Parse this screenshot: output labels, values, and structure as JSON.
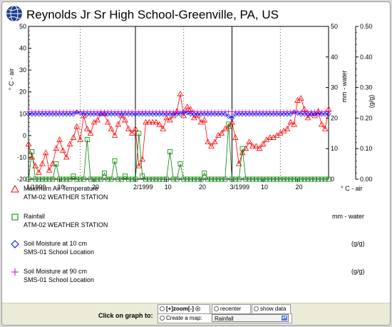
{
  "title": "Reynolds Jr Sr High School-Greenville, PA, US",
  "chart_data": {
    "type": "line",
    "x_unit": "day of record (1 = Jan 1, 1999)",
    "x_range": [
      1,
      88
    ],
    "month_starts": [
      1,
      32,
      60
    ],
    "x_tick_labels": [
      "1/1999",
      "10",
      "20",
      "2/1999",
      "10",
      "20",
      "3/1999",
      "10",
      "20"
    ],
    "x_tick_days": [
      1,
      10,
      20,
      32,
      41,
      51,
      60,
      69,
      79
    ],
    "y_left": {
      "label": "° C - air",
      "ylim": [
        -20,
        50
      ],
      "ticks": [
        -20,
        -10,
        0,
        10,
        20,
        30,
        40,
        50
      ]
    },
    "y_right1": {
      "label": "mm - water",
      "ylim": [
        0,
        50
      ],
      "ticks": [
        0,
        10,
        20,
        30,
        40,
        50
      ]
    },
    "y_right2": {
      "label": "(g/g)",
      "ylim": [
        0,
        0.5
      ],
      "ticks": [
        "0.00",
        "0.10",
        "0.20",
        "0.30",
        "0.40",
        "0.50"
      ]
    },
    "series": [
      {
        "name": "Maximum Air Temperature",
        "source": "ATM-02 WEATHER STATION",
        "unit": "° C - air",
        "axis": "left",
        "color": "#ff0000",
        "marker": "triangle",
        "x": [
          1,
          2,
          3,
          4,
          5,
          6,
          7,
          8,
          9,
          10,
          11,
          12,
          13,
          14,
          15,
          16,
          17,
          18,
          19,
          20,
          21,
          22,
          23,
          24,
          25,
          26,
          27,
          28,
          29,
          30,
          31,
          32,
          33,
          34,
          35,
          36,
          37,
          38,
          39,
          40,
          41,
          42,
          43,
          44,
          45,
          46,
          47,
          48,
          49,
          50,
          51,
          52,
          53,
          54,
          55,
          56,
          57,
          58,
          59,
          60,
          61,
          62,
          63,
          64,
          65,
          66,
          67,
          68,
          69,
          70,
          71,
          72,
          73,
          74,
          75,
          76,
          77,
          78,
          79,
          80,
          81,
          82,
          83,
          84,
          85,
          86,
          87,
          88
        ],
        "y": [
          -4,
          -10,
          -14,
          -17,
          -13,
          -8,
          -16,
          -13,
          -6,
          -2,
          -7,
          -10,
          -4,
          -1,
          4,
          -2,
          9,
          3,
          1,
          6,
          7,
          10,
          10,
          6,
          3,
          0,
          5,
          9,
          7,
          3,
          1,
          3,
          -14,
          -11,
          6,
          6,
          6,
          6,
          5,
          3,
          8,
          7,
          9,
          11,
          19,
          9,
          13,
          12,
          8,
          9,
          6,
          7,
          -3,
          -5,
          -3,
          0,
          1,
          3,
          4,
          6,
          -1,
          -13,
          -8,
          -6,
          -3,
          -5,
          -5,
          -6,
          -4,
          -2,
          -1,
          -1,
          0,
          1,
          2,
          3,
          6,
          5,
          16,
          17,
          12,
          8,
          10,
          9,
          11,
          5,
          3,
          12
        ]
      },
      {
        "name": "Rainfall",
        "source": "ATM-02 WEATHER STATION",
        "unit": "mm - water",
        "axis": "right1",
        "color": "#008000",
        "marker": "square",
        "x": [
          1,
          2,
          3,
          4,
          5,
          6,
          7,
          8,
          9,
          10,
          11,
          12,
          13,
          14,
          15,
          16,
          17,
          18,
          19,
          20,
          21,
          22,
          23,
          24,
          25,
          26,
          27,
          28,
          29,
          30,
          31,
          32,
          33,
          34,
          35,
          36,
          37,
          38,
          39,
          40,
          41,
          42,
          43,
          44,
          45,
          46,
          47,
          48,
          49,
          50,
          51,
          52,
          53,
          54,
          55,
          56,
          57,
          58,
          59,
          60,
          61,
          62,
          63,
          64,
          65,
          66,
          67,
          68,
          69,
          70,
          71,
          72,
          73,
          74,
          75,
          76,
          77,
          78,
          79,
          80,
          81,
          82,
          83,
          84,
          85,
          86,
          87,
          88
        ],
        "y": [
          0,
          9,
          0,
          0,
          0,
          0,
          0,
          0,
          5,
          0,
          0,
          0,
          0,
          1,
          0,
          0,
          0,
          13,
          0,
          0,
          0,
          0,
          2,
          0,
          0,
          6,
          0,
          0,
          1,
          0,
          0,
          0,
          15,
          1,
          0,
          0,
          0,
          0,
          0,
          0,
          0,
          9,
          0,
          0,
          5,
          0,
          0,
          0,
          0,
          0,
          0,
          2,
          0,
          0,
          0,
          0,
          0,
          0,
          18,
          0,
          0,
          0,
          10,
          0,
          0,
          0,
          0,
          0,
          0,
          0,
          0,
          0,
          0,
          0,
          0,
          0,
          0,
          0,
          0,
          0,
          0,
          0,
          0,
          0,
          0,
          0,
          0,
          0
        ]
      },
      {
        "name": "Soil Moisture at 10 cm",
        "source": "SMS-01 School Location",
        "unit": "(g/g)",
        "axis": "right2",
        "color": "#0000ff",
        "marker": "diamond",
        "x": [
          1,
          2,
          3,
          4,
          5,
          6,
          7,
          8,
          9,
          10,
          11,
          12,
          13,
          14,
          15,
          16,
          17,
          18,
          19,
          20,
          21,
          22,
          23,
          24,
          25,
          26,
          27,
          28,
          29,
          30,
          31,
          32,
          33,
          34,
          35,
          36,
          37,
          38,
          39,
          40,
          41,
          42,
          43,
          44,
          45,
          46,
          47,
          48,
          49,
          50,
          51,
          52,
          53,
          54,
          55,
          56,
          57,
          58,
          59,
          60,
          61,
          62,
          63,
          64,
          65,
          66,
          67,
          68,
          69,
          70,
          71,
          72,
          73,
          74,
          75,
          76,
          77,
          78,
          79,
          80,
          81,
          82,
          83,
          84,
          85,
          86,
          87,
          88
        ],
        "y": [
          0.213,
          0.213,
          0.213,
          0.213,
          0.213,
          0.213,
          0.213,
          0.213,
          0.213,
          0.213,
          0.213,
          0.213,
          0.213,
          0.213,
          0.22,
          0.216,
          0.213,
          0.213,
          0.213,
          0.213,
          0.213,
          0.213,
          0.213,
          0.213,
          0.213,
          0.213,
          0.213,
          0.213,
          0.213,
          0.213,
          0.213,
          0.213,
          0.213,
          0.213,
          0.213,
          0.213,
          0.213,
          0.213,
          0.213,
          0.213,
          0.213,
          0.213,
          0.213,
          0.213,
          0.213,
          0.22,
          0.218,
          0.213,
          0.213,
          0.213,
          0.213,
          0.213,
          0.213,
          0.213,
          0.213,
          0.213,
          0.213,
          0.213,
          0.206,
          0.2,
          0.213,
          0.213,
          0.213,
          0.213,
          0.213,
          0.213,
          0.213,
          0.213,
          0.213,
          0.213,
          0.213,
          0.213,
          0.213,
          0.213,
          0.213,
          0.213,
          0.213,
          0.22,
          0.216,
          0.213,
          0.213,
          0.213,
          0.213,
          0.213,
          0.213,
          0.213,
          0.213,
          0.213
        ]
      },
      {
        "name": "Soil Moisture at 90 cm",
        "source": "SMS-01 School Location",
        "unit": "(g/g)",
        "axis": "right2",
        "color": "#cc00cc",
        "marker": "plus",
        "x": [
          1,
          2,
          3,
          4,
          5,
          6,
          7,
          8,
          9,
          10,
          11,
          12,
          13,
          14,
          15,
          16,
          17,
          18,
          19,
          20,
          21,
          22,
          23,
          24,
          25,
          26,
          27,
          28,
          29,
          30,
          31,
          32,
          33,
          34,
          35,
          36,
          37,
          38,
          39,
          40,
          41,
          42,
          43,
          44,
          45,
          46,
          47,
          48,
          49,
          50,
          51,
          52,
          53,
          54,
          55,
          56,
          57,
          58,
          59,
          60,
          61,
          62,
          63,
          64,
          65,
          66,
          67,
          68,
          69,
          70,
          71,
          72,
          73,
          74,
          75,
          76,
          77,
          78,
          79,
          80,
          81,
          82,
          83,
          84,
          85,
          86,
          87,
          88
        ],
        "y": [
          0.221,
          0.221,
          0.221,
          0.221,
          0.221,
          0.221,
          0.221,
          0.221,
          0.221,
          0.221,
          0.221,
          0.221,
          0.221,
          0.221,
          0.221,
          0.221,
          0.221,
          0.221,
          0.221,
          0.221,
          0.221,
          0.221,
          0.221,
          0.221,
          0.221,
          0.221,
          0.221,
          0.221,
          0.221,
          0.221,
          0.221,
          0.221,
          0.221,
          0.221,
          0.221,
          0.221,
          0.221,
          0.221,
          0.221,
          0.221,
          0.221,
          0.221,
          0.221,
          0.221,
          0.221,
          0.221,
          0.221,
          0.221,
          0.221,
          0.221,
          0.221,
          0.221,
          0.221,
          0.221,
          0.221,
          0.221,
          0.221,
          0.221,
          0.221,
          0.221,
          0.221,
          0.221,
          0.221,
          0.221,
          0.221,
          0.221,
          0.221,
          0.221,
          0.221,
          0.221,
          0.221,
          0.221,
          0.221,
          0.221,
          0.221,
          0.221,
          0.221,
          0.221,
          0.221,
          0.221,
          0.221,
          0.221,
          0.221,
          0.221,
          0.221,
          0.221,
          0.221,
          0.221
        ]
      }
    ]
  },
  "controls": {
    "click_label": "Click on graph to:",
    "zoom_label": "[+]zoom[-]",
    "recenter_label": "recenter",
    "show_data_label": "show data",
    "create_map_label": "Create a map:",
    "map_selected": "Rainfall"
  }
}
